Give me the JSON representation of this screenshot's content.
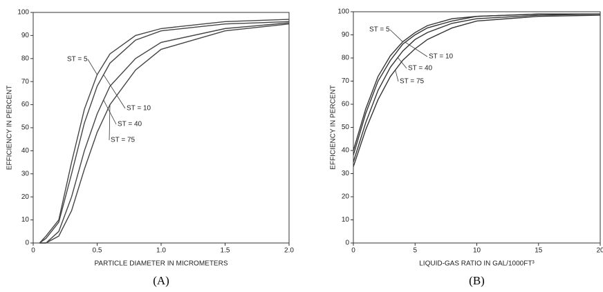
{
  "chart_data": [
    {
      "type": "line",
      "caption": "(A)",
      "x_label": "PARTICLE DIAMETER IN MICROMETERS",
      "y_label": "EFFICIENCY IN PERCENT",
      "x": [
        0.05,
        0.1,
        0.2,
        0.3,
        0.4,
        0.5,
        0.6,
        0.8,
        1.0,
        1.5,
        2.0
      ],
      "series": [
        {
          "name": "ST = 5",
          "color": "#444444",
          "values": [
            0,
            3,
            10,
            35,
            58,
            73,
            82,
            90,
            93,
            96,
            97
          ]
        },
        {
          "name": "ST = 10",
          "color": "#444444",
          "values": [
            0,
            2,
            9,
            30,
            52,
            68,
            78,
            88,
            92,
            95,
            96
          ]
        },
        {
          "name": "ST = 40",
          "color": "#444444",
          "values": [
            0,
            0,
            5,
            20,
            40,
            56,
            68,
            80,
            87,
            93,
            95.5
          ]
        },
        {
          "name": "ST = 75",
          "color": "#444444",
          "values": [
            0,
            0,
            3,
            14,
            32,
            48,
            60,
            75,
            84,
            92,
            95
          ]
        }
      ],
      "xlim": [
        0,
        2
      ],
      "xticks": [
        0,
        0.5,
        {
          "value": 1,
          "label": "1.0"
        },
        1.5,
        {
          "value": 2,
          "label": "2.0"
        }
      ],
      "ylim": [
        0,
        100
      ],
      "yticks": [
        0,
        10,
        20,
        30,
        40,
        50,
        60,
        70,
        80,
        90,
        100
      ]
    },
    {
      "type": "line",
      "caption": "(B)",
      "x_label": "LIQUID-GAS RATIO IN GAL/1000FT³",
      "y_label": "EFFICIENCY IN PERCENT",
      "x": [
        0,
        1,
        2,
        3,
        4,
        5,
        6,
        8,
        10,
        15,
        20
      ],
      "series": [
        {
          "name": "ST = 5",
          "color": "#333333",
          "values": [
            40,
            58,
            72,
            81,
            87,
            91,
            94,
            97,
            98,
            99,
            99
          ]
        },
        {
          "name": "ST = 10",
          "color": "#333333",
          "values": [
            38,
            56,
            70,
            79,
            86,
            90,
            93,
            96,
            98,
            99,
            99
          ]
        },
        {
          "name": "ST = 40",
          "color": "#333333",
          "values": [
            35,
            52,
            66,
            76,
            83,
            88,
            91,
            95,
            97,
            98.5,
            99
          ]
        },
        {
          "name": "ST = 75",
          "color": "#333333",
          "values": [
            33,
            49,
            62,
            72,
            79,
            84,
            88,
            93,
            96,
            98,
            98.5
          ]
        }
      ],
      "xlim": [
        0,
        20
      ],
      "xticks": [
        0,
        5,
        10,
        15,
        20
      ],
      "ylim": [
        0,
        100
      ],
      "yticks": [
        0,
        10,
        20,
        30,
        40,
        50,
        60,
        70,
        80,
        90,
        100
      ]
    }
  ]
}
